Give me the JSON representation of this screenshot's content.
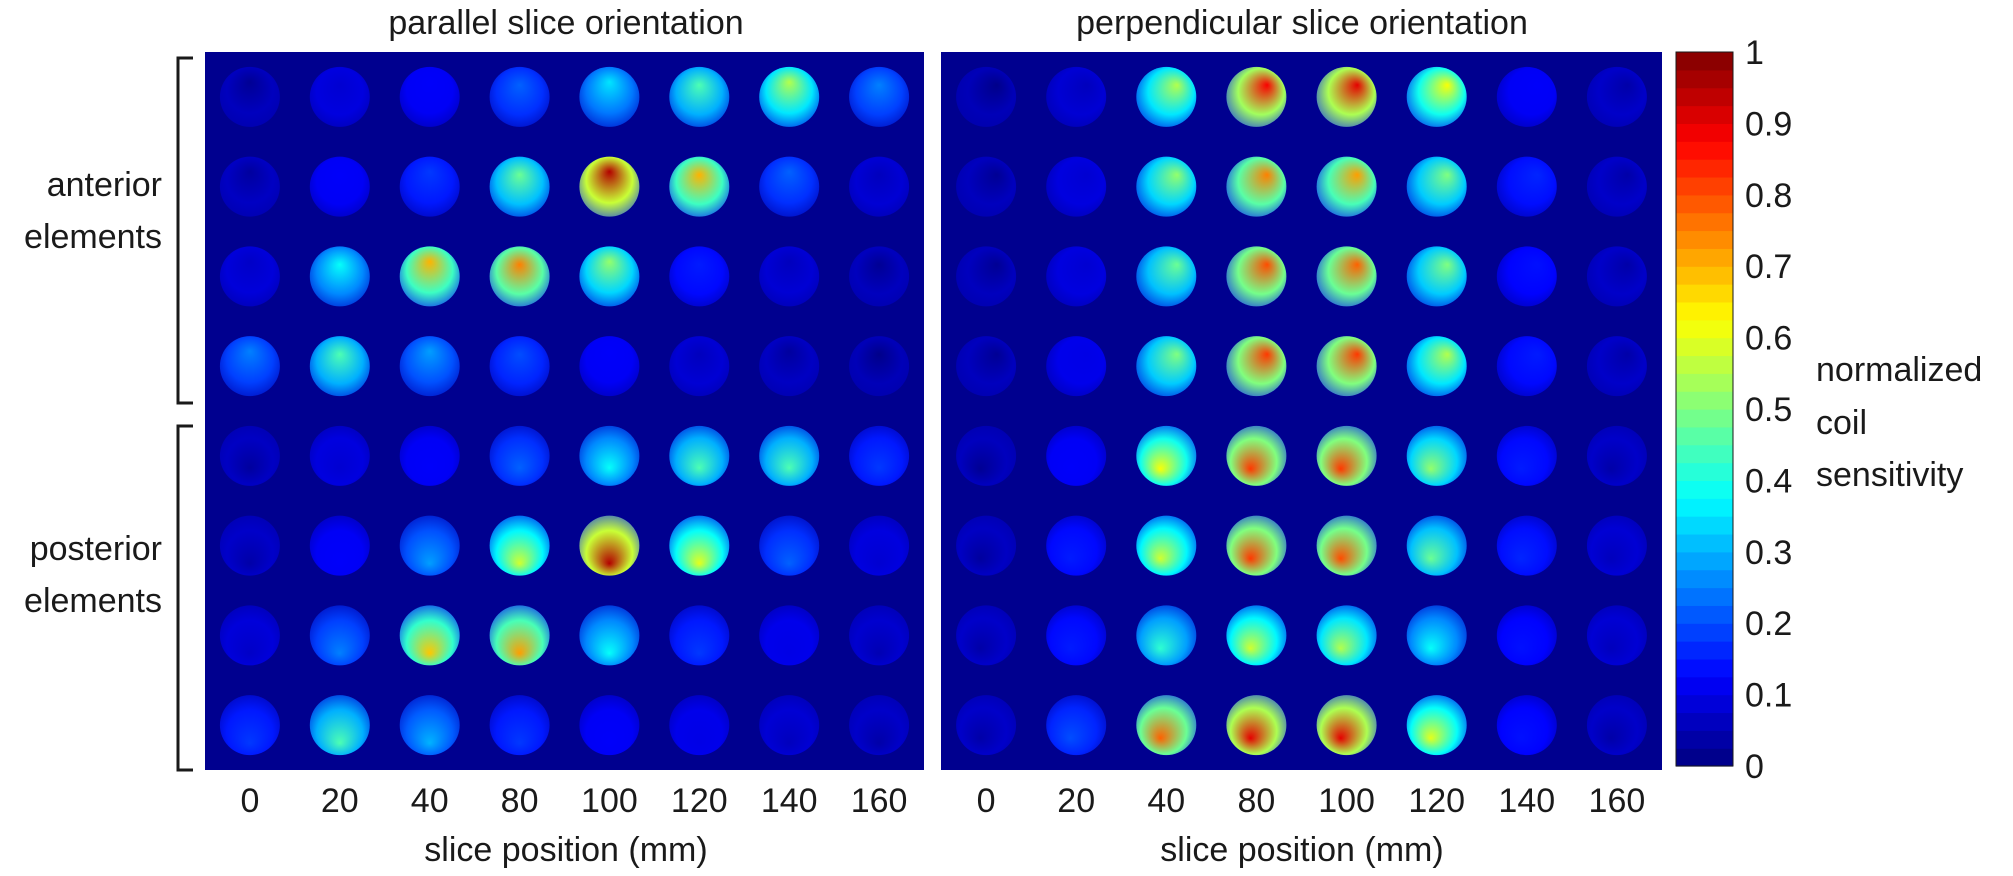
{
  "chart_data": {
    "type": "heatmap",
    "panels": [
      {
        "title": "parallel slice orientation",
        "xlabel": "slice position (mm)",
        "x_ticks": [
          "0",
          "20",
          "40",
          "80",
          "100",
          "120",
          "140",
          "160"
        ],
        "values": [
          [
            0.02,
            0.08,
            0.12,
            0.22,
            0.35,
            0.45,
            0.55,
            0.25
          ],
          [
            0.03,
            0.12,
            0.18,
            0.48,
            0.95,
            0.7,
            0.22,
            0.06
          ],
          [
            0.07,
            0.38,
            0.7,
            0.75,
            0.52,
            0.15,
            0.06,
            0.02
          ],
          [
            0.25,
            0.45,
            0.28,
            0.2,
            0.12,
            0.06,
            0.03,
            0.01
          ],
          [
            0.03,
            0.08,
            0.12,
            0.22,
            0.38,
            0.45,
            0.45,
            0.18
          ],
          [
            0.04,
            0.12,
            0.28,
            0.58,
            0.95,
            0.6,
            0.22,
            0.08
          ],
          [
            0.07,
            0.25,
            0.68,
            0.72,
            0.38,
            0.18,
            0.1,
            0.05
          ],
          [
            0.18,
            0.45,
            0.3,
            0.18,
            0.12,
            0.1,
            0.06,
            0.04
          ]
        ]
      },
      {
        "title": "perpendicular slice orientation",
        "xlabel": "slice position (mm)",
        "x_ticks": [
          "0",
          "20",
          "40",
          "80",
          "100",
          "120",
          "140",
          "160"
        ],
        "values": [
          [
            0.01,
            0.06,
            0.55,
            0.88,
            0.9,
            0.62,
            0.12,
            0.04
          ],
          [
            0.02,
            0.08,
            0.52,
            0.75,
            0.72,
            0.5,
            0.16,
            0.04
          ],
          [
            0.02,
            0.08,
            0.48,
            0.8,
            0.78,
            0.5,
            0.14,
            0.04
          ],
          [
            0.02,
            0.1,
            0.5,
            0.82,
            0.82,
            0.55,
            0.15,
            0.04
          ],
          [
            0.02,
            0.12,
            0.62,
            0.82,
            0.82,
            0.52,
            0.15,
            0.04
          ],
          [
            0.03,
            0.15,
            0.58,
            0.82,
            0.8,
            0.48,
            0.16,
            0.06
          ],
          [
            0.04,
            0.15,
            0.42,
            0.58,
            0.55,
            0.38,
            0.14,
            0.06
          ],
          [
            0.04,
            0.2,
            0.78,
            0.9,
            0.9,
            0.6,
            0.14,
            0.04
          ]
        ]
      }
    ],
    "row_groups": [
      {
        "label": "anterior elements",
        "rows": 4
      },
      {
        "label": "posterior elements",
        "rows": 4
      }
    ],
    "colorbar": {
      "label": "normalized coil sensitivity",
      "range": [
        0,
        1
      ],
      "ticks": [
        "0",
        "0.1",
        "0.2",
        "0.3",
        "0.4",
        "0.5",
        "0.6",
        "0.7",
        "0.8",
        "0.9",
        "1"
      ],
      "colormap": "jet",
      "levels": 40
    },
    "background_color": "#00008f"
  }
}
